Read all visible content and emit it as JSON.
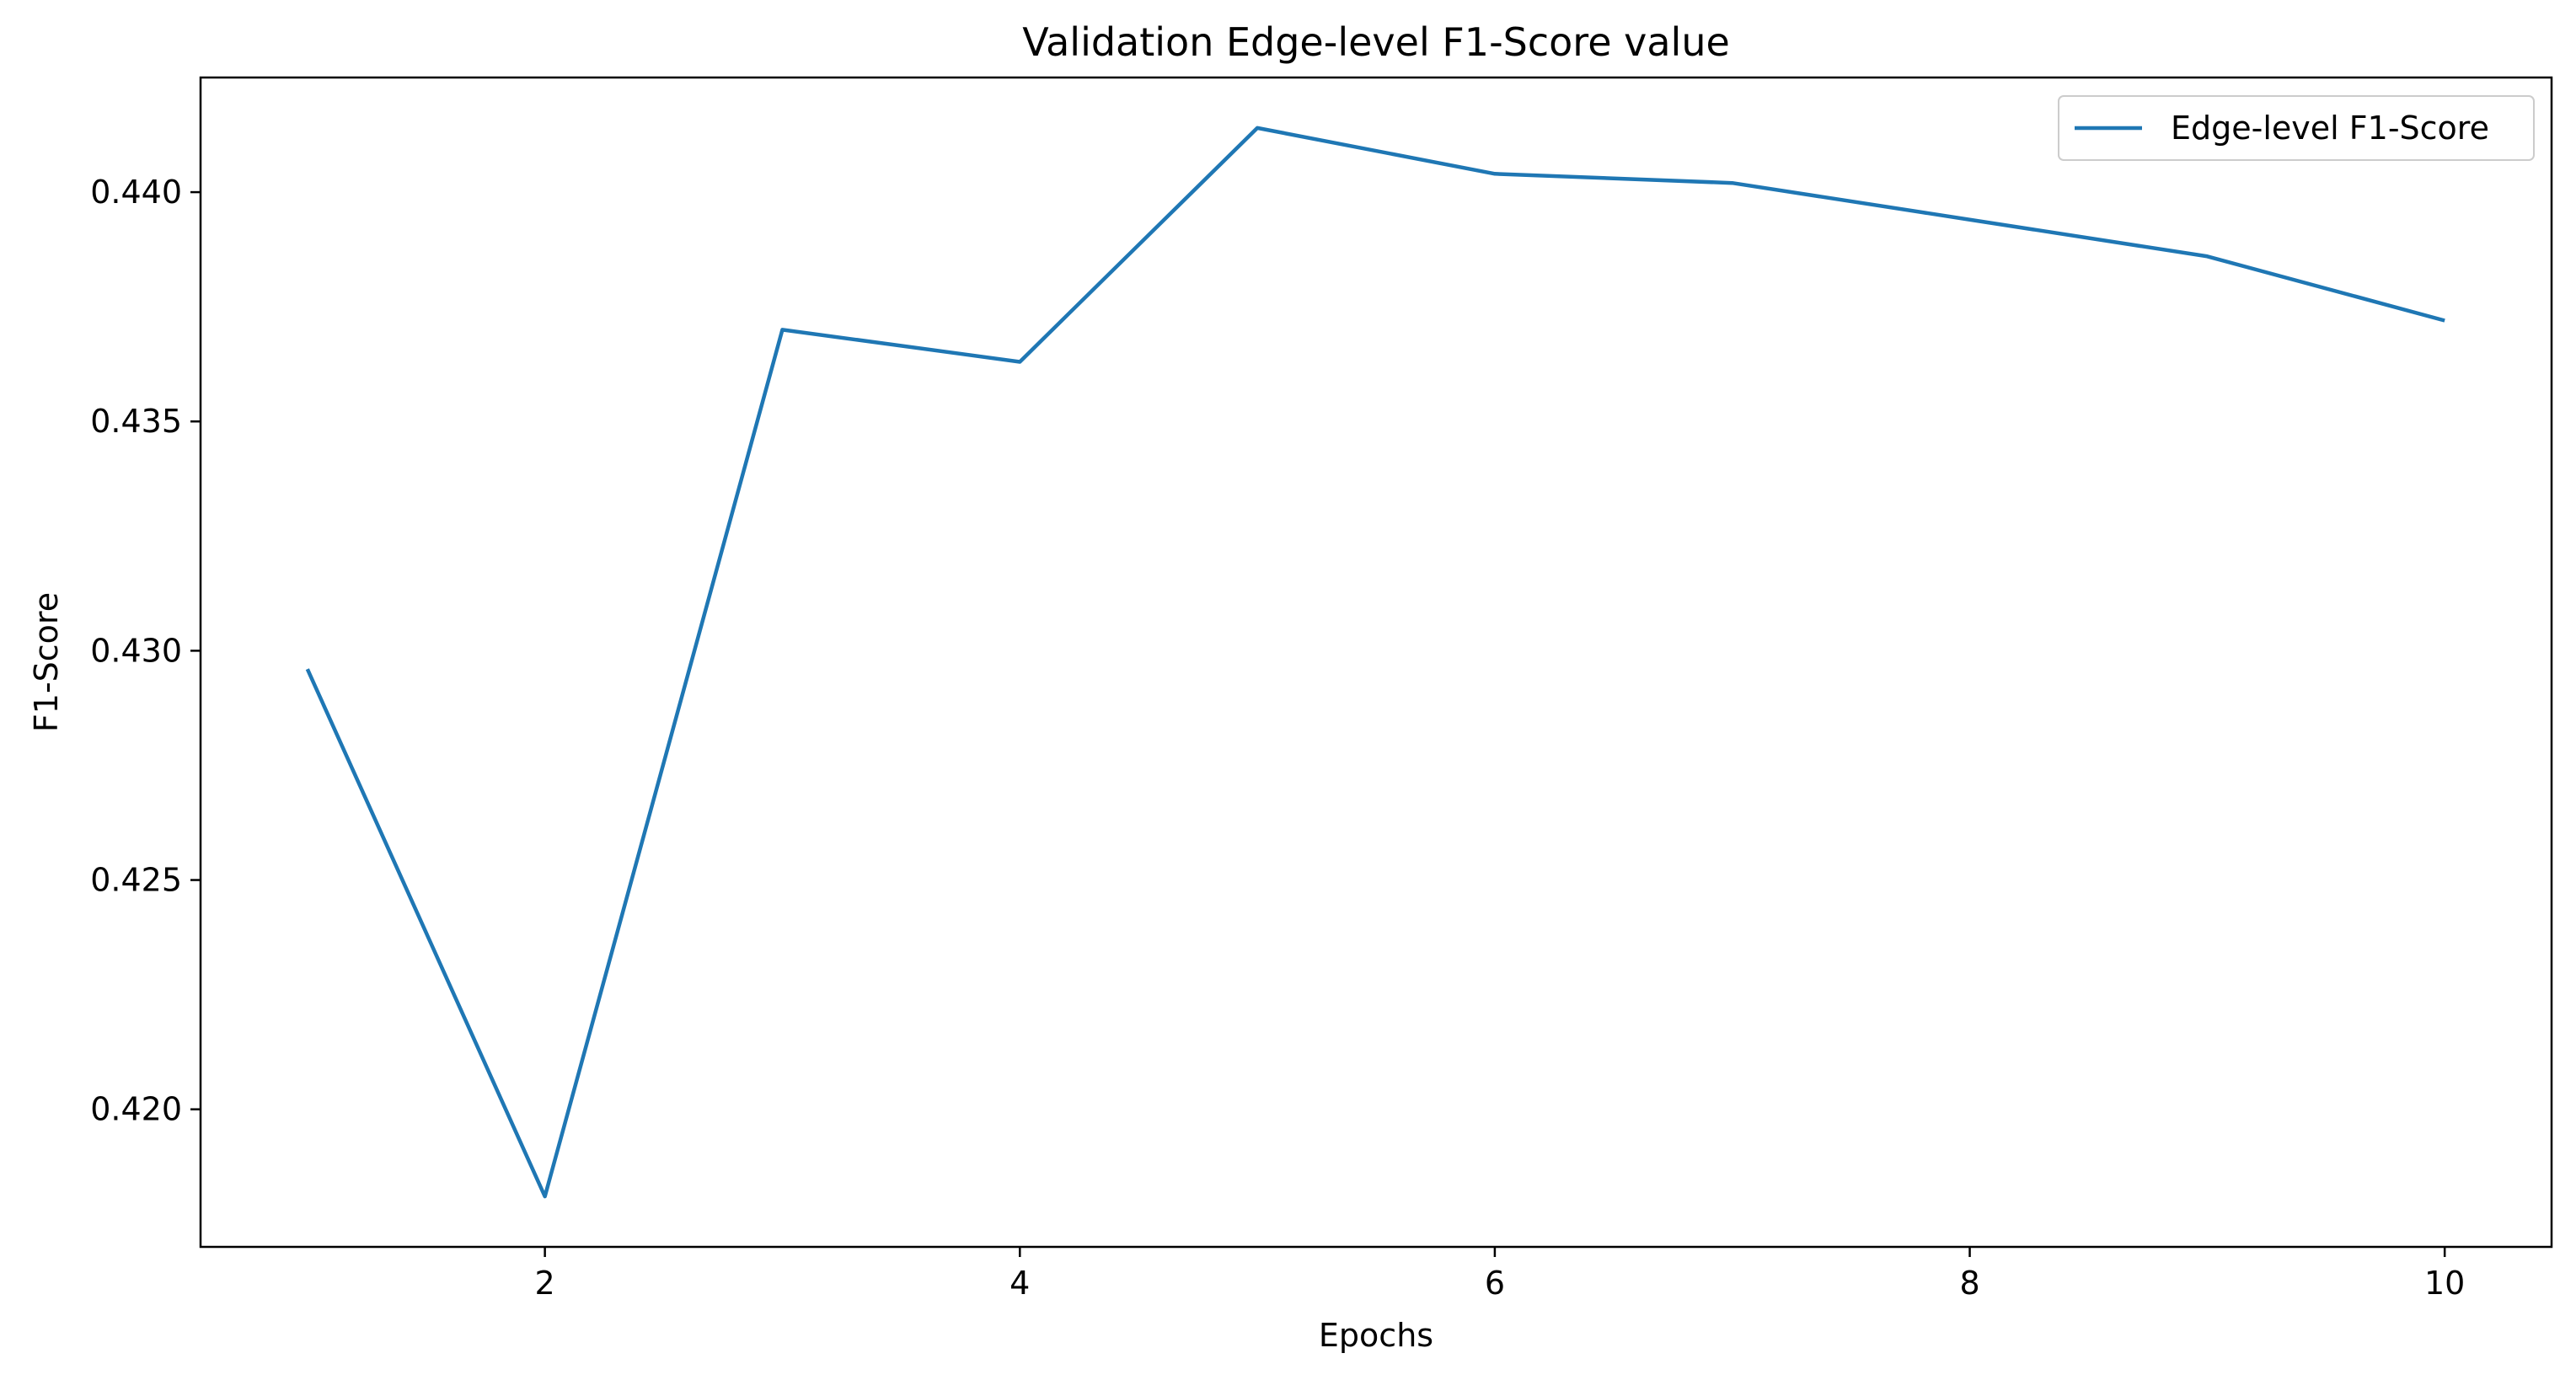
{
  "chart_data": {
    "type": "line",
    "title": "Validation Edge-level F1-Score value",
    "xlabel": "Epochs",
    "ylabel": "F1-Score",
    "x": [
      1,
      2,
      3,
      4,
      5,
      6,
      7,
      8,
      9,
      10
    ],
    "series": [
      {
        "name": "Edge-level F1-Score",
        "color": "#1f77b4",
        "values": [
          0.4296,
          0.4181,
          0.437,
          0.4363,
          0.4414,
          0.4404,
          0.4402,
          0.4394,
          0.4386,
          0.4372
        ]
      }
    ],
    "xlim": [
      0.55,
      10.45
    ],
    "ylim": [
      0.417,
      0.4425
    ],
    "xticks": [
      2,
      4,
      6,
      8,
      10
    ],
    "xtick_labels": [
      "2",
      "4",
      "6",
      "8",
      "10"
    ],
    "yticks": [
      0.42,
      0.425,
      0.43,
      0.435,
      0.44
    ],
    "ytick_labels": [
      "0.420",
      "0.425",
      "0.430",
      "0.435",
      "0.440"
    ],
    "grid": false,
    "legend_position": "top-right"
  }
}
